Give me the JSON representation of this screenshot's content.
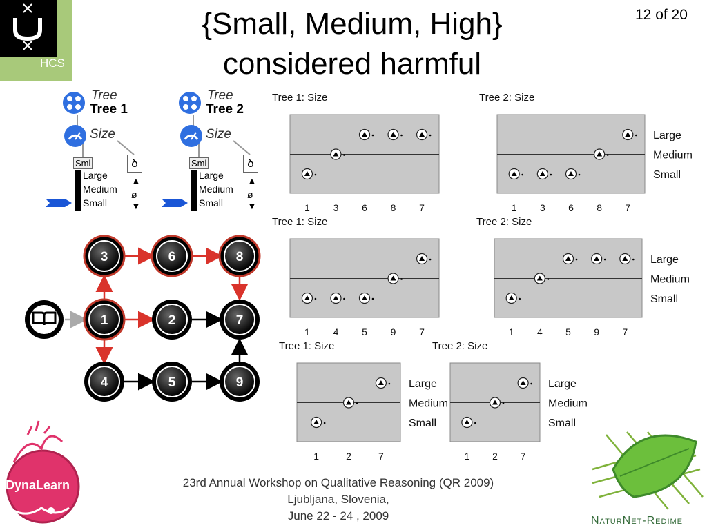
{
  "slide": {
    "title_line1": "{Small, Medium, High}",
    "title_line2": "considered harmful",
    "page_number": "12 of 20"
  },
  "logos": {
    "hcs": "HCS",
    "dynalearn": "DynaLearn",
    "naturnet": "NaturNet-Redime"
  },
  "model_fragments": [
    {
      "tree_italic": "Tree",
      "tree_bold": "Tree 1",
      "quantity": "Size",
      "space_tag": "Sml",
      "delta": "δ",
      "values": [
        "Large",
        "Medium",
        "Small"
      ],
      "derivative_values": [
        "▲",
        "ø",
        "▼"
      ]
    },
    {
      "tree_italic": "Tree",
      "tree_bold": "Tree 2",
      "quantity": "Size",
      "space_tag": "Sml",
      "delta": "δ",
      "values": [
        "Large",
        "Medium",
        "Small"
      ],
      "derivative_values": [
        "▲",
        "ø",
        "▼"
      ]
    }
  ],
  "state_graph": {
    "nodes": [
      "3",
      "6",
      "8",
      "1",
      "2",
      "7",
      "4",
      "5",
      "9"
    ],
    "start_icon": "book-icon"
  },
  "value_plots": [
    {
      "title": "Tree 1: Size",
      "x": [
        "1",
        "3",
        "6",
        "8",
        "7"
      ],
      "levels": [
        0,
        1,
        2,
        2,
        2
      ],
      "labels": [
        "Large",
        "Medium",
        "Small"
      ]
    },
    {
      "title": "Tree 2: Size",
      "x": [
        "1",
        "3",
        "6",
        "8",
        "7"
      ],
      "levels": [
        0,
        0,
        0,
        1,
        2
      ],
      "labels": [
        "Large",
        "Medium",
        "Small"
      ]
    },
    {
      "title": "Tree 1: Size",
      "x": [
        "1",
        "4",
        "5",
        "9",
        "7"
      ],
      "levels": [
        0,
        0,
        0,
        1,
        2
      ],
      "labels": [
        "Large",
        "Medium",
        "Small"
      ]
    },
    {
      "title": "Tree 2: Size",
      "x": [
        "1",
        "4",
        "5",
        "9",
        "7"
      ],
      "levels": [
        0,
        1,
        2,
        2,
        2
      ],
      "labels": [
        "Large",
        "Medium",
        "Small"
      ]
    },
    {
      "title": "Tree 1: Size",
      "x": [
        "1",
        "2",
        "7"
      ],
      "levels": [
        0,
        1,
        2
      ],
      "labels": [
        "Large",
        "Medium",
        "Small"
      ]
    },
    {
      "title": "Tree 2: Size",
      "x": [
        "1",
        "2",
        "7"
      ],
      "levels": [
        0,
        1,
        2
      ],
      "labels": [
        "Large",
        "Medium",
        "Small"
      ]
    }
  ],
  "footer": {
    "line1": "23rd Annual Workshop on Qualitative Reasoning (QR 2009)",
    "line2": "Ljubljana, Slovenia,",
    "line3": "June 22 - 24 , 2009"
  },
  "colors": {
    "plot_bg": "#c8c8c8",
    "node_red": "#c0392b",
    "uva_green": "#a8c97a",
    "naturnet_green": "#356b3a"
  }
}
